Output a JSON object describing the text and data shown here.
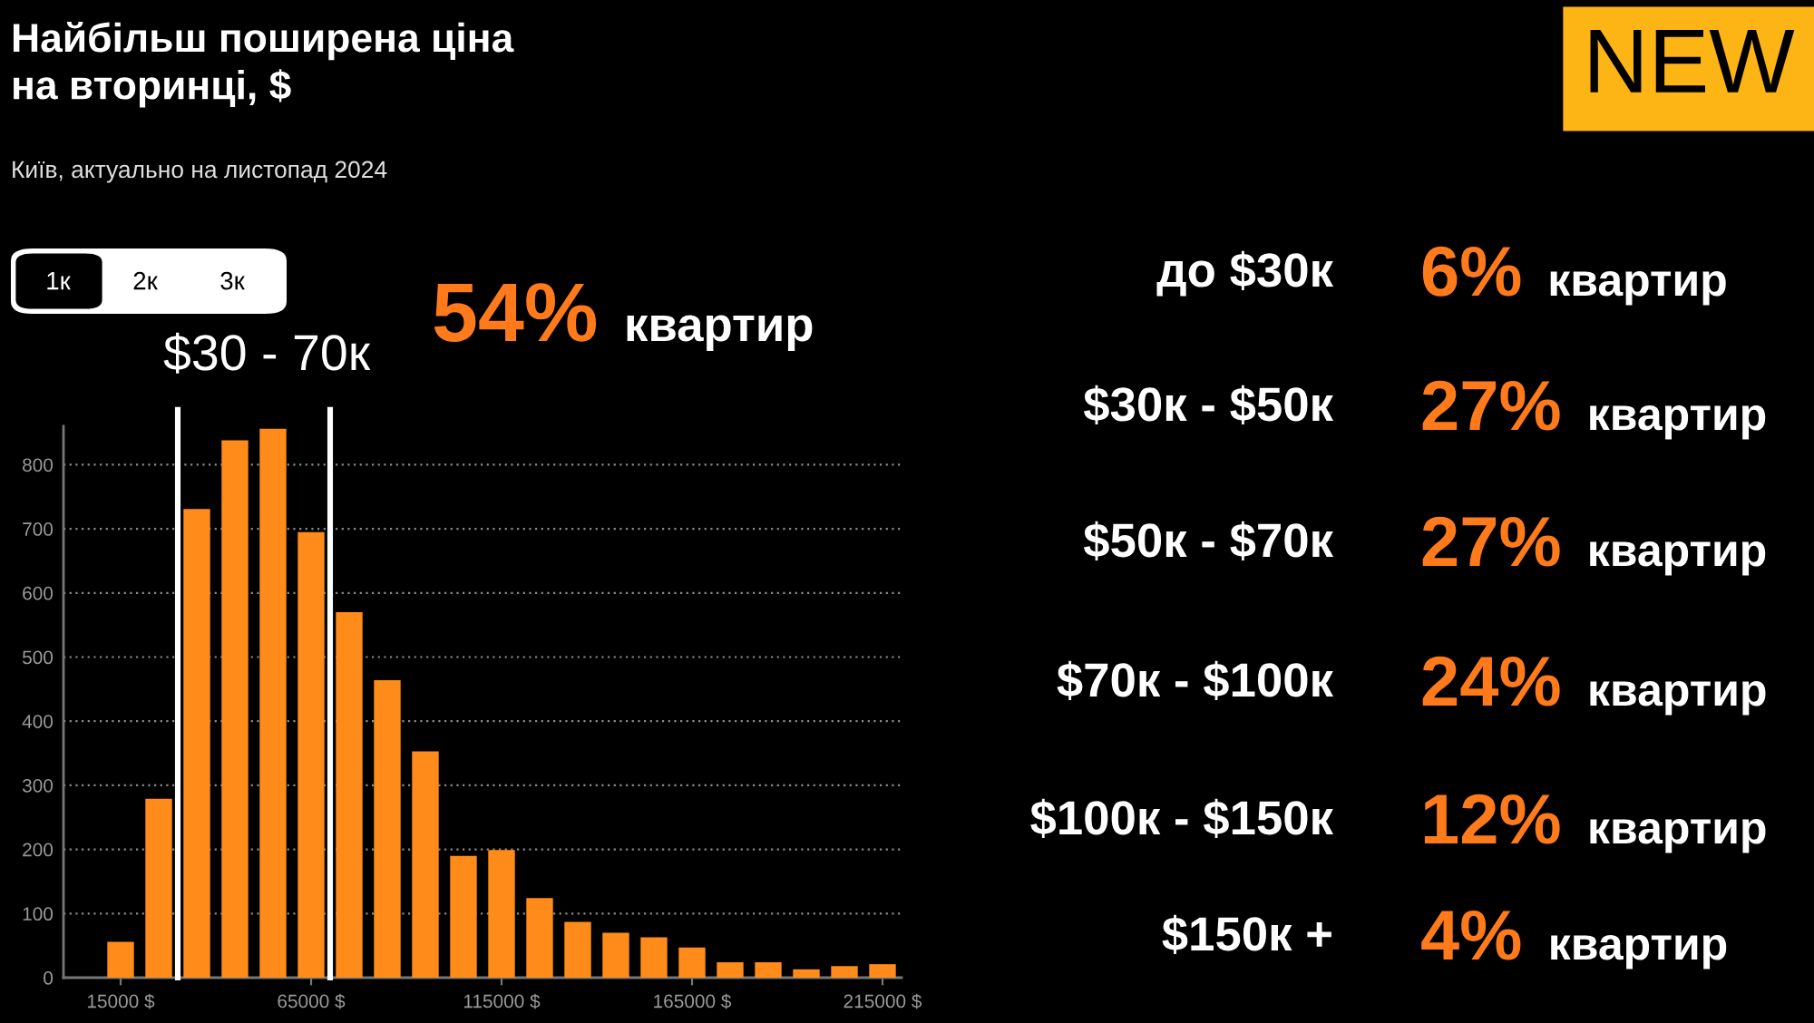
{
  "chart_data": [
    {
      "type": "histogram",
      "title": "Найбільш поширена ціна\nна вторинці, $",
      "subtitle": "Київ, актуально на листопад 2024",
      "bins": [
        10000,
        20000,
        30000,
        40000,
        50000,
        60000,
        70000,
        80000,
        90000,
        100000,
        110000,
        120000,
        130000,
        140000,
        150000,
        160000,
        170000,
        180000,
        190000,
        200000,
        210000,
        220000
      ],
      "values": [
        56,
        279,
        731,
        838,
        856,
        695,
        570,
        464,
        353,
        190,
        199,
        124,
        87,
        70,
        63,
        47,
        24,
        24,
        13,
        18,
        21
      ],
      "color": "#ff8c1a",
      "xlim": [
        0,
        220000
      ],
      "xticks": [
        {
          "value": 15000,
          "label": "15000 $"
        },
        {
          "value": 65000,
          "label": "65000 $"
        },
        {
          "value": 115000,
          "label": "115000 $"
        },
        {
          "value": 165000,
          "label": "165000 $"
        },
        {
          "value": 215000,
          "label": "215000 $"
        }
      ],
      "ylim": [
        0,
        860
      ],
      "yticks": [
        0,
        100,
        200,
        300,
        400,
        500,
        600,
        700,
        800
      ],
      "grid": "y",
      "ref_lines": [
        {
          "axis": "x",
          "value": 30000,
          "color": "#ffffff"
        },
        {
          "axis": "x",
          "value": 70000,
          "color": "#ffffff"
        }
      ],
      "annotations": [
        "1к",
        "2к",
        "3к",
        "$30 - 70к",
        "54%",
        "квартир"
      ]
    },
    {
      "type": "other",
      "annotations": [
        "NEW",
        "до $30к",
        "6%",
        "квартир",
        "$30к - $50к",
        "27%",
        "квартир",
        "$50к - $70к",
        "27%",
        "квартир",
        "$70к - $100к",
        "24%",
        "квартир",
        "$100к - $150к",
        "12%",
        "квартир",
        "$150к +",
        "4%",
        "квартир"
      ]
    }
  ]
}
